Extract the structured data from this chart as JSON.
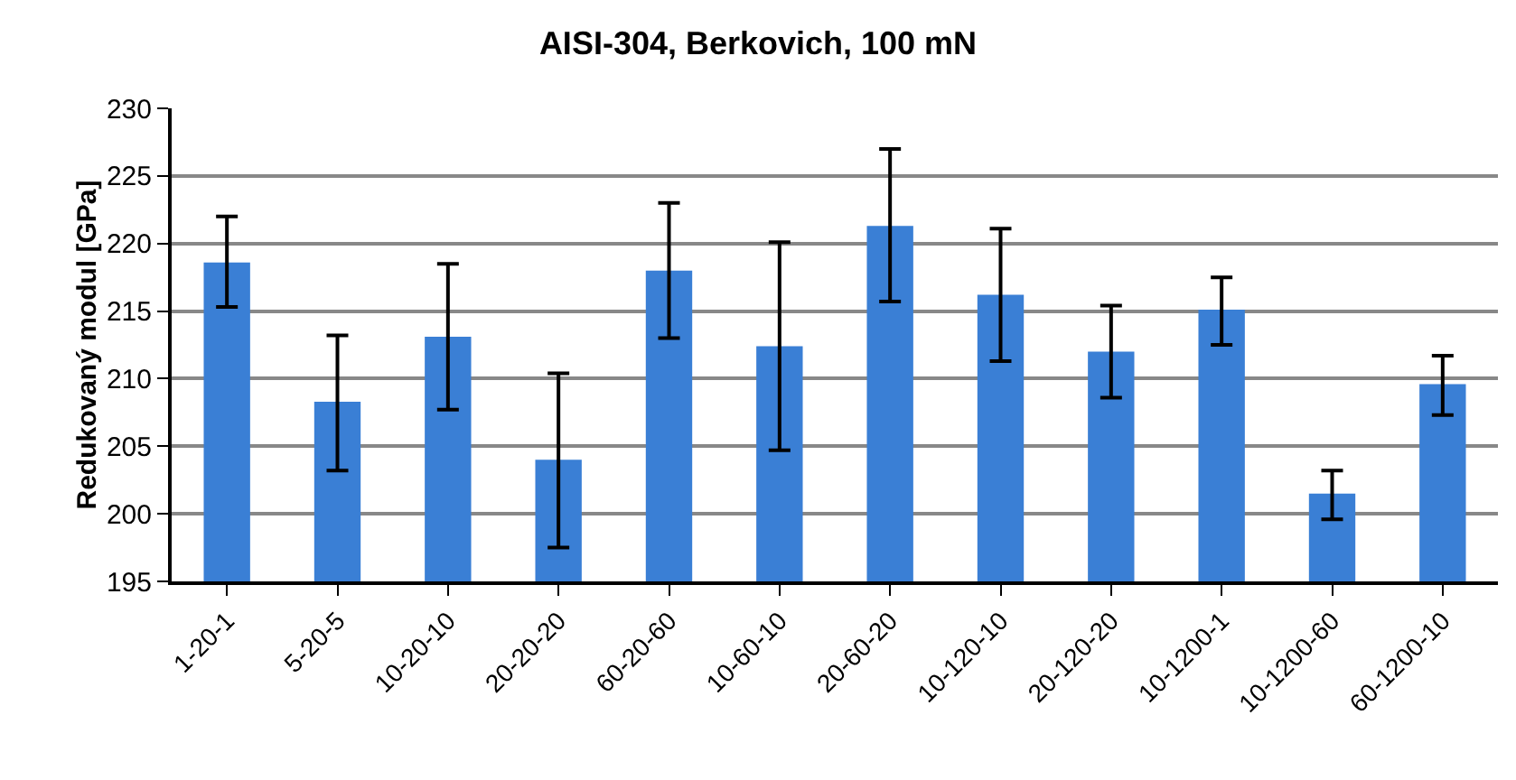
{
  "chart_data": {
    "type": "bar",
    "title": "AISI-304, Berkovich, 100 mN",
    "ylabel": "Redukovaný modul [GPa]",
    "categories": [
      "1-20-1",
      "5-20-5",
      "10-20-10",
      "20-20-20",
      "60-20-60",
      "10-60-10",
      "20-60-20",
      "10-120-10",
      "20-120-20",
      "10-1200-1",
      "10-1200-60",
      "60-1200-10"
    ],
    "values": [
      218.6,
      208.3,
      213.1,
      204.0,
      218.0,
      212.4,
      221.3,
      216.2,
      212.0,
      215.1,
      201.5,
      209.6
    ],
    "errors": [
      [
        215.3,
        222.0
      ],
      [
        203.2,
        213.2
      ],
      [
        207.7,
        218.5
      ],
      [
        197.5,
        210.4
      ],
      [
        213.0,
        223.0
      ],
      [
        204.7,
        220.1
      ],
      [
        215.7,
        227.0
      ],
      [
        211.3,
        221.1
      ],
      [
        208.6,
        215.4
      ],
      [
        212.5,
        217.5
      ],
      [
        199.6,
        203.2
      ],
      [
        207.3,
        211.7
      ]
    ],
    "color": "#3a7fd5",
    "ylim": [
      195,
      230
    ],
    "yticks": [
      195,
      200,
      205,
      210,
      215,
      220,
      225,
      230
    ],
    "grid": "y",
    "legend": false
  }
}
